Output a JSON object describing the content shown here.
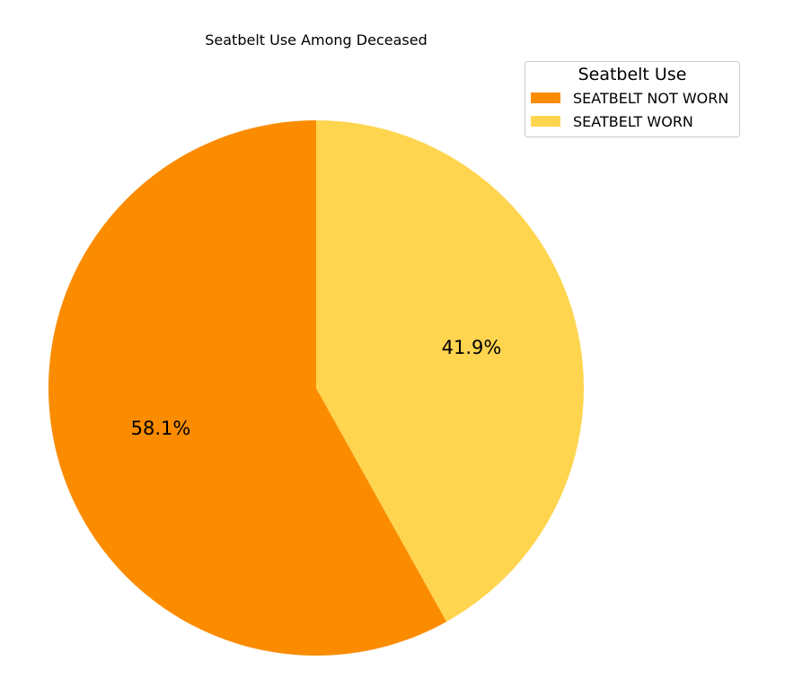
{
  "chart_data": {
    "type": "pie",
    "title": "Seatbelt Use Among Deceased",
    "slices": [
      {
        "label": "SEATBELT NOT WORN",
        "value": 58.1,
        "value_label": "58.1%",
        "color": "#FB8C00"
      },
      {
        "label": "SEATBELT WORN",
        "value": 41.9,
        "value_label": "41.9%",
        "color": "#FFD54F"
      }
    ],
    "start_angle_deg": 90,
    "direction": "counterclockwise",
    "legend": {
      "title": "Seatbelt Use",
      "placement": "top-right"
    }
  }
}
